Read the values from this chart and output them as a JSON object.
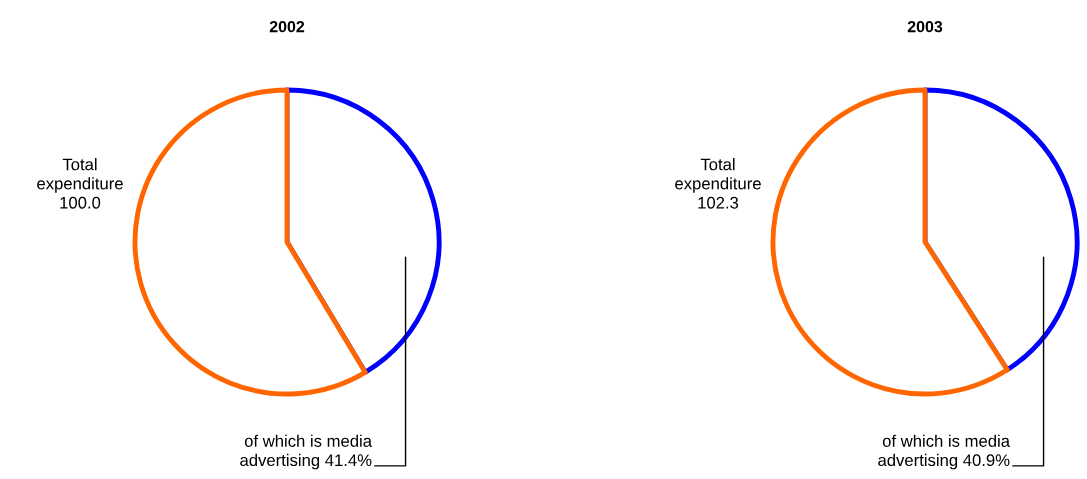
{
  "chart_data": [
    {
      "type": "pie",
      "title": "2002",
      "categories": [
        null,
        null
      ],
      "values": [
        41.4,
        58.6
      ],
      "colors": [
        "#0000ff",
        "#ff6600"
      ],
      "annotations": [
        "Total\nexpenditure\n100.0",
        "of which is media\nadvertising 41.4%"
      ]
    },
    {
      "type": "pie",
      "title": "2003",
      "categories": [
        null,
        null
      ],
      "values": [
        40.9,
        59.1
      ],
      "colors": [
        "#0000ff",
        "#ff6600"
      ],
      "annotations": [
        "Total\nexpenditure\n102.3",
        "of which is media\nadvertising 40.9%"
      ]
    }
  ]
}
